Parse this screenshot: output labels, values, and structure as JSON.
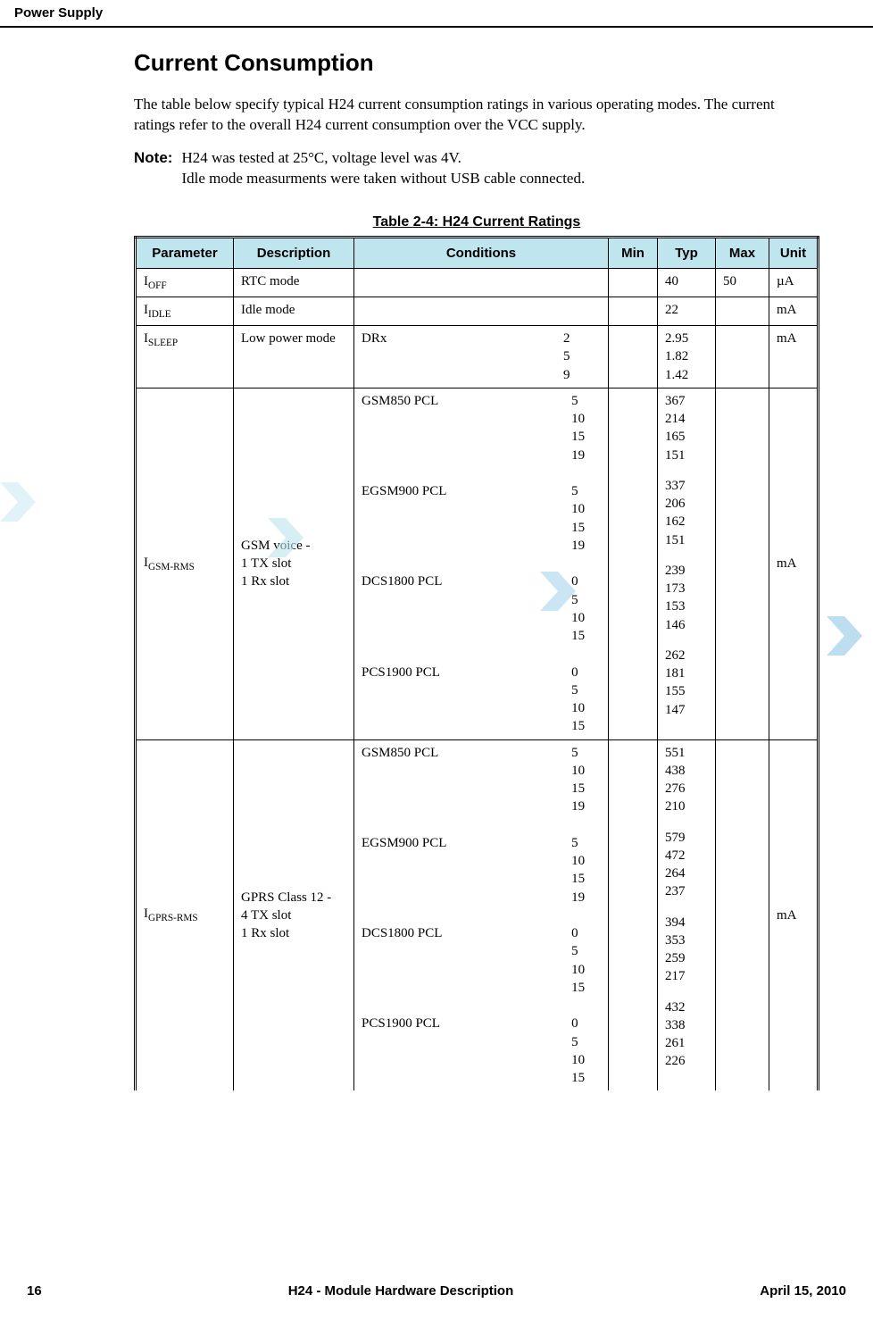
{
  "header": {
    "section": "Power Supply"
  },
  "title": "Current Consumption",
  "intro": "The table below specify typical H24 current consumption ratings in various operating modes. The current ratings refer to the overall H24 current consumption over the VCC supply.",
  "note_label": "Note:",
  "note_text": "H24 was tested at 25°C, voltage level was 4V.\nIdle mode measurments were taken without USB cable connected.",
  "table": {
    "caption": "Table 2-4: H24 Current Ratings",
    "columns": [
      "Parameter",
      "Description",
      "Conditions",
      "Min",
      "Typ",
      "Max",
      "Unit"
    ],
    "col_widths": [
      "110px",
      "135px",
      "auto",
      "55px",
      "65px",
      "60px",
      "55px"
    ],
    "header_bg": "#bfe6ef",
    "rows": [
      {
        "param_base": "I",
        "param_sub": "OFF",
        "description": "RTC mode",
        "conditions": [],
        "min": "",
        "typ": [
          "40"
        ],
        "max": "50",
        "unit": "µA"
      },
      {
        "param_base": "I",
        "param_sub": "IDLE",
        "description": "Idle mode",
        "conditions": [],
        "min": "",
        "typ": [
          "22"
        ],
        "max": "",
        "unit": "mA"
      },
      {
        "param_base": "I",
        "param_sub": "SLEEP",
        "description": "Low power mode",
        "conditions": [
          {
            "label": "DRx",
            "values": [
              "2",
              "5",
              "9"
            ]
          }
        ],
        "min": "",
        "typ": [
          [
            "2.95",
            "1.82",
            "1.42"
          ]
        ],
        "max": "",
        "unit": "mA"
      },
      {
        "param_base": "I",
        "param_sub": "GSM-RMS",
        "description": "GSM voice -\n1 TX slot\n1 Rx slot",
        "conditions": [
          {
            "label": "GSM850 PCL",
            "values": [
              "5",
              "10",
              "15",
              "19"
            ]
          },
          {
            "label": "EGSM900 PCL",
            "values": [
              "5",
              "10",
              "15",
              "19"
            ]
          },
          {
            "label": "DCS1800 PCL",
            "values": [
              "0",
              "5",
              "10",
              "15"
            ]
          },
          {
            "label": "PCS1900 PCL",
            "values": [
              "0",
              "5",
              "10",
              "15"
            ]
          }
        ],
        "min": "",
        "typ": [
          [
            "367",
            "214",
            "165",
            "151"
          ],
          [
            "337",
            "206",
            "162",
            "151"
          ],
          [
            "239",
            "173",
            "153",
            "146"
          ],
          [
            "262",
            "181",
            "155",
            "147"
          ]
        ],
        "max": "",
        "unit": "mA",
        "desc_vmid": true
      },
      {
        "param_base": "I",
        "param_sub": "GPRS-RMS",
        "description": "GPRS Class 12 -\n4 TX slot\n1 Rx slot",
        "conditions": [
          {
            "label": "GSM850 PCL",
            "values": [
              "5",
              "10",
              "15",
              "19"
            ]
          },
          {
            "label": "EGSM900 PCL",
            "values": [
              "5",
              "10",
              "15",
              "19"
            ]
          },
          {
            "label": "DCS1800 PCL",
            "values": [
              "0",
              "5",
              "10",
              "15"
            ]
          },
          {
            "label": "PCS1900 PCL",
            "values": [
              "0",
              "5",
              "10",
              "15"
            ]
          }
        ],
        "min": "",
        "typ": [
          [
            "551",
            "438",
            "276",
            "210"
          ],
          [
            "579",
            "472",
            "264",
            "237"
          ],
          [
            "394",
            "353",
            "259",
            "217"
          ],
          [
            "432",
            "338",
            "261",
            "226"
          ]
        ],
        "max": "",
        "unit": "mA",
        "desc_vmid": true
      }
    ]
  },
  "footer": {
    "page": "16",
    "title": "H24 - Module Hardware Description",
    "date": "April 15, 2010"
  },
  "decorations": {
    "chevron_color_light": "#bfe3f0",
    "chevron_color_mid": "#91c9e6"
  }
}
